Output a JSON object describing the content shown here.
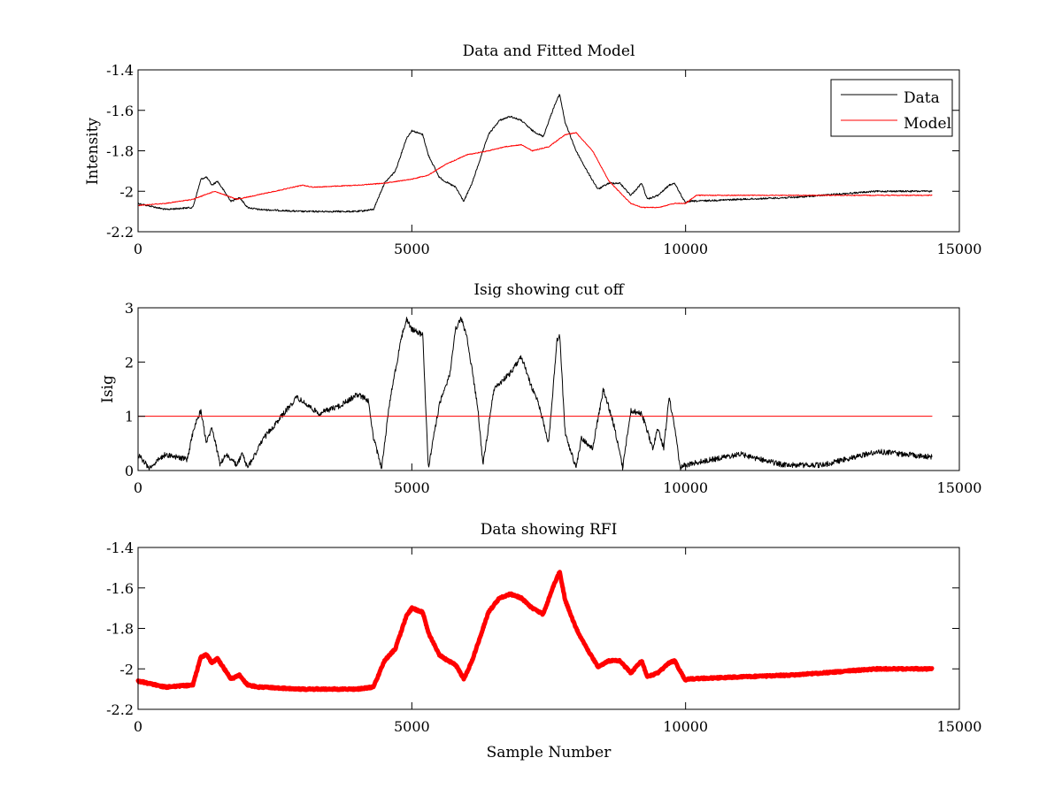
{
  "colors": {
    "data": "#000000",
    "model": "#ff0000",
    "rfi": "#ff0000",
    "cutoff": "#ff0000",
    "axis": "#000000",
    "background": "#ffffff"
  },
  "chart_data": [
    {
      "type": "line",
      "title": "Data and Fitted Model",
      "xlabel": "",
      "ylabel": "Intensity",
      "xlim": [
        0,
        15000
      ],
      "ylim": [
        -2.2,
        -1.4
      ],
      "yreverse": false,
      "xticks": [
        0,
        5000,
        10000,
        15000
      ],
      "xtick_labels": [
        "0",
        "5000",
        "10000",
        "15000"
      ],
      "yticks": [
        -2.2,
        -2,
        -1.8,
        -1.6,
        -1.4
      ],
      "ytick_labels": [
        "-2.2",
        "-2",
        "-1.8",
        "-1.6",
        "-1.4"
      ],
      "grid": false,
      "legend": {
        "position": "top-right",
        "entries": [
          "Data",
          "Model"
        ]
      },
      "series": [
        {
          "name": "Data",
          "color": "#000000",
          "noise": 0.004,
          "x": [
            0,
            500,
            1000,
            1150,
            1250,
            1350,
            1450,
            1550,
            1700,
            1850,
            2000,
            2200,
            3000,
            4000,
            4300,
            4500,
            4700,
            4900,
            5000,
            5200,
            5300,
            5500,
            5600,
            5800,
            5950,
            6100,
            6200,
            6400,
            6600,
            6800,
            7000,
            7200,
            7400,
            7600,
            7700,
            7800,
            8000,
            8200,
            8400,
            8600,
            8800,
            9000,
            9200,
            9300,
            9500,
            9700,
            9800,
            9900,
            10000,
            10050,
            11000,
            12000,
            12500,
            13000,
            13500,
            14000,
            14500
          ],
          "y": [
            -2.06,
            -2.09,
            -2.08,
            -1.94,
            -1.93,
            -1.97,
            -1.95,
            -1.99,
            -2.05,
            -2.03,
            -2.08,
            -2.09,
            -2.1,
            -2.1,
            -2.09,
            -1.96,
            -1.9,
            -1.74,
            -1.7,
            -1.72,
            -1.82,
            -1.93,
            -1.95,
            -1.98,
            -2.05,
            -1.96,
            -1.88,
            -1.72,
            -1.65,
            -1.63,
            -1.65,
            -1.7,
            -1.73,
            -1.58,
            -1.52,
            -1.66,
            -1.8,
            -1.9,
            -1.99,
            -1.96,
            -1.96,
            -2.02,
            -1.96,
            -2.04,
            -2.02,
            -1.97,
            -1.96,
            -2.01,
            -2.06,
            -2.05,
            -2.04,
            -2.03,
            -2.02,
            -2.01,
            -2.0,
            -2.0,
            -2.0
          ]
        },
        {
          "name": "Model",
          "color": "#ff0000",
          "noise": 0.002,
          "x": [
            0,
            500,
            1000,
            1400,
            1800,
            2500,
            3000,
            3200,
            4000,
            4500,
            5000,
            5300,
            5600,
            6000,
            6400,
            6700,
            7000,
            7200,
            7500,
            7800,
            8000,
            8300,
            8600,
            9000,
            9200,
            9500,
            9800,
            10000,
            10200,
            12000,
            14500
          ],
          "y": [
            -2.07,
            -2.06,
            -2.04,
            -2.0,
            -2.04,
            -2.0,
            -1.97,
            -1.98,
            -1.97,
            -1.96,
            -1.94,
            -1.92,
            -1.87,
            -1.82,
            -1.8,
            -1.78,
            -1.77,
            -1.8,
            -1.78,
            -1.72,
            -1.71,
            -1.8,
            -1.95,
            -2.06,
            -2.08,
            -2.08,
            -2.06,
            -2.06,
            -2.02,
            -2.02,
            -2.02
          ]
        }
      ]
    },
    {
      "type": "line",
      "title": "Isig showing cut off",
      "xlabel": "",
      "ylabel": "Isig",
      "xlim": [
        0,
        15000
      ],
      "ylim": [
        0,
        3
      ],
      "xticks": [
        0,
        5000,
        10000,
        15000
      ],
      "xtick_labels": [
        "0",
        "5000",
        "10000",
        "15000"
      ],
      "yticks": [
        0,
        1,
        2,
        3
      ],
      "ytick_labels": [
        "0",
        "1",
        "2",
        "3"
      ],
      "grid": false,
      "series": [
        {
          "color": "#000000",
          "noise": 0.05,
          "x": [
            0,
            200,
            500,
            900,
            1000,
            1100,
            1150,
            1250,
            1350,
            1500,
            1600,
            1800,
            1900,
            2000,
            2300,
            2900,
            3300,
            3700,
            4000,
            4200,
            4300,
            4450,
            4600,
            4800,
            4900,
            5000,
            5200,
            5300,
            5500,
            5700,
            5800,
            5900,
            6000,
            6200,
            6300,
            6500,
            6800,
            7000,
            7200,
            7300,
            7500,
            7650,
            7700,
            7800,
            8000,
            8100,
            8300,
            8500,
            8700,
            8850,
            9000,
            9200,
            9400,
            9500,
            9600,
            9700,
            9800,
            9900,
            10000,
            10200,
            11000,
            11800,
            12500,
            13500,
            14500
          ],
          "y": [
            0.3,
            0.05,
            0.3,
            0.2,
            0.7,
            1.0,
            1.1,
            0.5,
            0.8,
            0.1,
            0.3,
            0.1,
            0.3,
            0.05,
            0.6,
            1.35,
            1.05,
            1.2,
            1.4,
            1.3,
            0.6,
            0.05,
            1.3,
            2.4,
            2.8,
            2.6,
            2.5,
            0.05,
            1.2,
            1.8,
            2.6,
            2.8,
            2.5,
            1.2,
            0.1,
            1.5,
            1.8,
            2.1,
            1.5,
            1.3,
            0.5,
            2.4,
            2.5,
            0.7,
            0.05,
            0.6,
            0.4,
            1.5,
            0.8,
            0.05,
            1.1,
            1.05,
            0.4,
            0.8,
            0.4,
            1.35,
            0.8,
            0.05,
            0.1,
            0.15,
            0.3,
            0.1,
            0.1,
            0.35,
            0.25
          ]
        },
        {
          "name": "cut off",
          "color": "#ff0000",
          "noise": 0,
          "x": [
            0,
            15000
          ],
          "y": [
            1,
            1
          ]
        }
      ]
    },
    {
      "type": "line",
      "title": "Data showing RFI",
      "xlabel": "Sample Number",
      "ylabel": "",
      "xlim": [
        0,
        15000
      ],
      "ylim": [
        -2.2,
        -1.4
      ],
      "xticks": [
        0,
        5000,
        10000,
        15000
      ],
      "xtick_labels": [
        "0",
        "5000",
        "10000",
        "15000"
      ],
      "yticks": [
        -2.2,
        -2,
        -1.8,
        -1.6,
        -1.4
      ],
      "ytick_labels": [
        "-2.2",
        "-2",
        "-1.8",
        "-1.6",
        "-1.4"
      ],
      "grid": false,
      "series": [
        {
          "color": "#ff0000",
          "noise": 0.004,
          "thick": true,
          "x": [
            0,
            500,
            1000,
            1150,
            1250,
            1350,
            1450,
            1550,
            1700,
            1850,
            2000,
            2200,
            3000,
            4000,
            4300,
            4500,
            4700,
            4900,
            5000,
            5200,
            5300,
            5500,
            5600,
            5800,
            5950,
            6100,
            6200,
            6400,
            6600,
            6800,
            7000,
            7200,
            7400,
            7600,
            7700,
            7800,
            8000,
            8200,
            8400,
            8600,
            8800,
            9000,
            9200,
            9300,
            9500,
            9700,
            9800,
            9900,
            10000,
            10050,
            11000,
            12000,
            12500,
            13000,
            13500,
            14000,
            14500
          ],
          "y": [
            -2.06,
            -2.09,
            -2.08,
            -1.94,
            -1.93,
            -1.97,
            -1.95,
            -1.99,
            -2.05,
            -2.03,
            -2.08,
            -2.09,
            -2.1,
            -2.1,
            -2.09,
            -1.96,
            -1.9,
            -1.74,
            -1.7,
            -1.72,
            -1.82,
            -1.93,
            -1.95,
            -1.98,
            -2.05,
            -1.96,
            -1.88,
            -1.72,
            -1.65,
            -1.63,
            -1.65,
            -1.7,
            -1.73,
            -1.58,
            -1.52,
            -1.66,
            -1.8,
            -1.9,
            -1.99,
            -1.96,
            -1.96,
            -2.02,
            -1.96,
            -2.04,
            -2.02,
            -1.97,
            -1.96,
            -2.01,
            -2.06,
            -2.05,
            -2.04,
            -2.03,
            -2.02,
            -2.01,
            -2.0,
            -2.0,
            -2.0
          ]
        }
      ]
    }
  ]
}
